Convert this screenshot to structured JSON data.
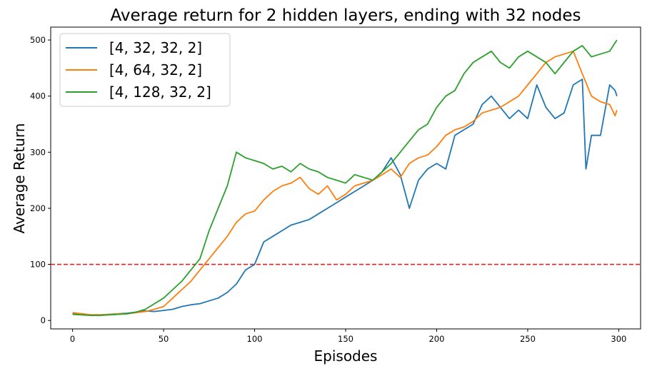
{
  "chart_data": {
    "type": "line",
    "title": "Average return for 2 hidden layers, ending with 32 nodes",
    "xlabel": "Episodes",
    "ylabel": "Average Return",
    "xlim": [
      -12,
      312
    ],
    "ylim": [
      -15,
      523
    ],
    "xticks": [
      0,
      50,
      100,
      150,
      200,
      250,
      300
    ],
    "yticks": [
      0,
      100,
      200,
      300,
      400,
      500
    ],
    "grid": false,
    "legend_position": "top-left",
    "reference_line": {
      "y": 100,
      "color": "#d62728",
      "style": "dashed"
    },
    "series": [
      {
        "name": "[4, 32, 32, 2]",
        "color": "#1f77b4",
        "x": [
          0,
          5,
          10,
          15,
          20,
          25,
          30,
          35,
          40,
          45,
          50,
          55,
          60,
          65,
          70,
          75,
          80,
          85,
          90,
          95,
          100,
          105,
          110,
          115,
          120,
          125,
          130,
          135,
          140,
          145,
          150,
          155,
          160,
          165,
          170,
          175,
          180,
          185,
          190,
          195,
          200,
          205,
          210,
          215,
          220,
          225,
          230,
          235,
          240,
          245,
          250,
          255,
          260,
          265,
          270,
          275,
          280,
          282,
          285,
          290,
          295,
          298,
          299
        ],
        "y": [
          12,
          12,
          10,
          10,
          11,
          12,
          13,
          15,
          17,
          16,
          18,
          20,
          25,
          28,
          30,
          35,
          40,
          50,
          65,
          90,
          100,
          140,
          150,
          160,
          170,
          175,
          180,
          190,
          200,
          210,
          220,
          230,
          240,
          250,
          265,
          290,
          260,
          200,
          250,
          270,
          280,
          270,
          330,
          340,
          350,
          385,
          400,
          380,
          360,
          375,
          360,
          420,
          380,
          360,
          370,
          420,
          430,
          270,
          330,
          330,
          420,
          410,
          400
        ]
      },
      {
        "name": "[4, 64, 32, 2]",
        "color": "#ff7f0e",
        "x": [
          0,
          5,
          10,
          15,
          20,
          25,
          30,
          35,
          40,
          45,
          50,
          55,
          60,
          65,
          70,
          75,
          80,
          85,
          90,
          95,
          100,
          105,
          110,
          115,
          120,
          125,
          130,
          135,
          140,
          145,
          150,
          155,
          160,
          165,
          170,
          175,
          180,
          185,
          190,
          195,
          200,
          205,
          210,
          215,
          220,
          225,
          230,
          235,
          240,
          245,
          250,
          255,
          260,
          265,
          270,
          275,
          280,
          285,
          290,
          295,
          298,
          299
        ],
        "y": [
          14,
          12,
          10,
          10,
          11,
          12,
          12,
          14,
          16,
          20,
          25,
          40,
          55,
          70,
          90,
          110,
          130,
          150,
          175,
          190,
          195,
          215,
          230,
          240,
          245,
          255,
          235,
          225,
          240,
          215,
          225,
          240,
          245,
          250,
          260,
          270,
          255,
          280,
          290,
          295,
          310,
          330,
          340,
          345,
          355,
          370,
          375,
          380,
          390,
          400,
          420,
          440,
          460,
          470,
          475,
          480,
          440,
          400,
          390,
          385,
          365,
          375
        ]
      },
      {
        "name": "[4, 128, 32, 2]",
        "color": "#2ca02c",
        "x": [
          0,
          5,
          10,
          15,
          20,
          25,
          30,
          35,
          40,
          45,
          50,
          55,
          60,
          65,
          70,
          75,
          80,
          85,
          90,
          95,
          100,
          105,
          110,
          115,
          120,
          125,
          130,
          135,
          140,
          145,
          150,
          155,
          160,
          165,
          170,
          175,
          180,
          185,
          190,
          195,
          200,
          205,
          210,
          215,
          220,
          225,
          230,
          235,
          240,
          245,
          250,
          255,
          260,
          265,
          270,
          275,
          280,
          285,
          290,
          295,
          298,
          299
        ],
        "y": [
          11,
          10,
          9,
          9,
          10,
          11,
          12,
          15,
          20,
          30,
          40,
          55,
          70,
          90,
          110,
          160,
          200,
          240,
          300,
          290,
          285,
          280,
          270,
          275,
          265,
          280,
          270,
          265,
          255,
          250,
          245,
          260,
          255,
          250,
          265,
          280,
          300,
          320,
          340,
          350,
          380,
          400,
          410,
          440,
          460,
          470,
          480,
          460,
          450,
          470,
          480,
          470,
          460,
          440,
          460,
          480,
          490,
          470,
          475,
          480,
          495,
          500
        ]
      }
    ]
  }
}
